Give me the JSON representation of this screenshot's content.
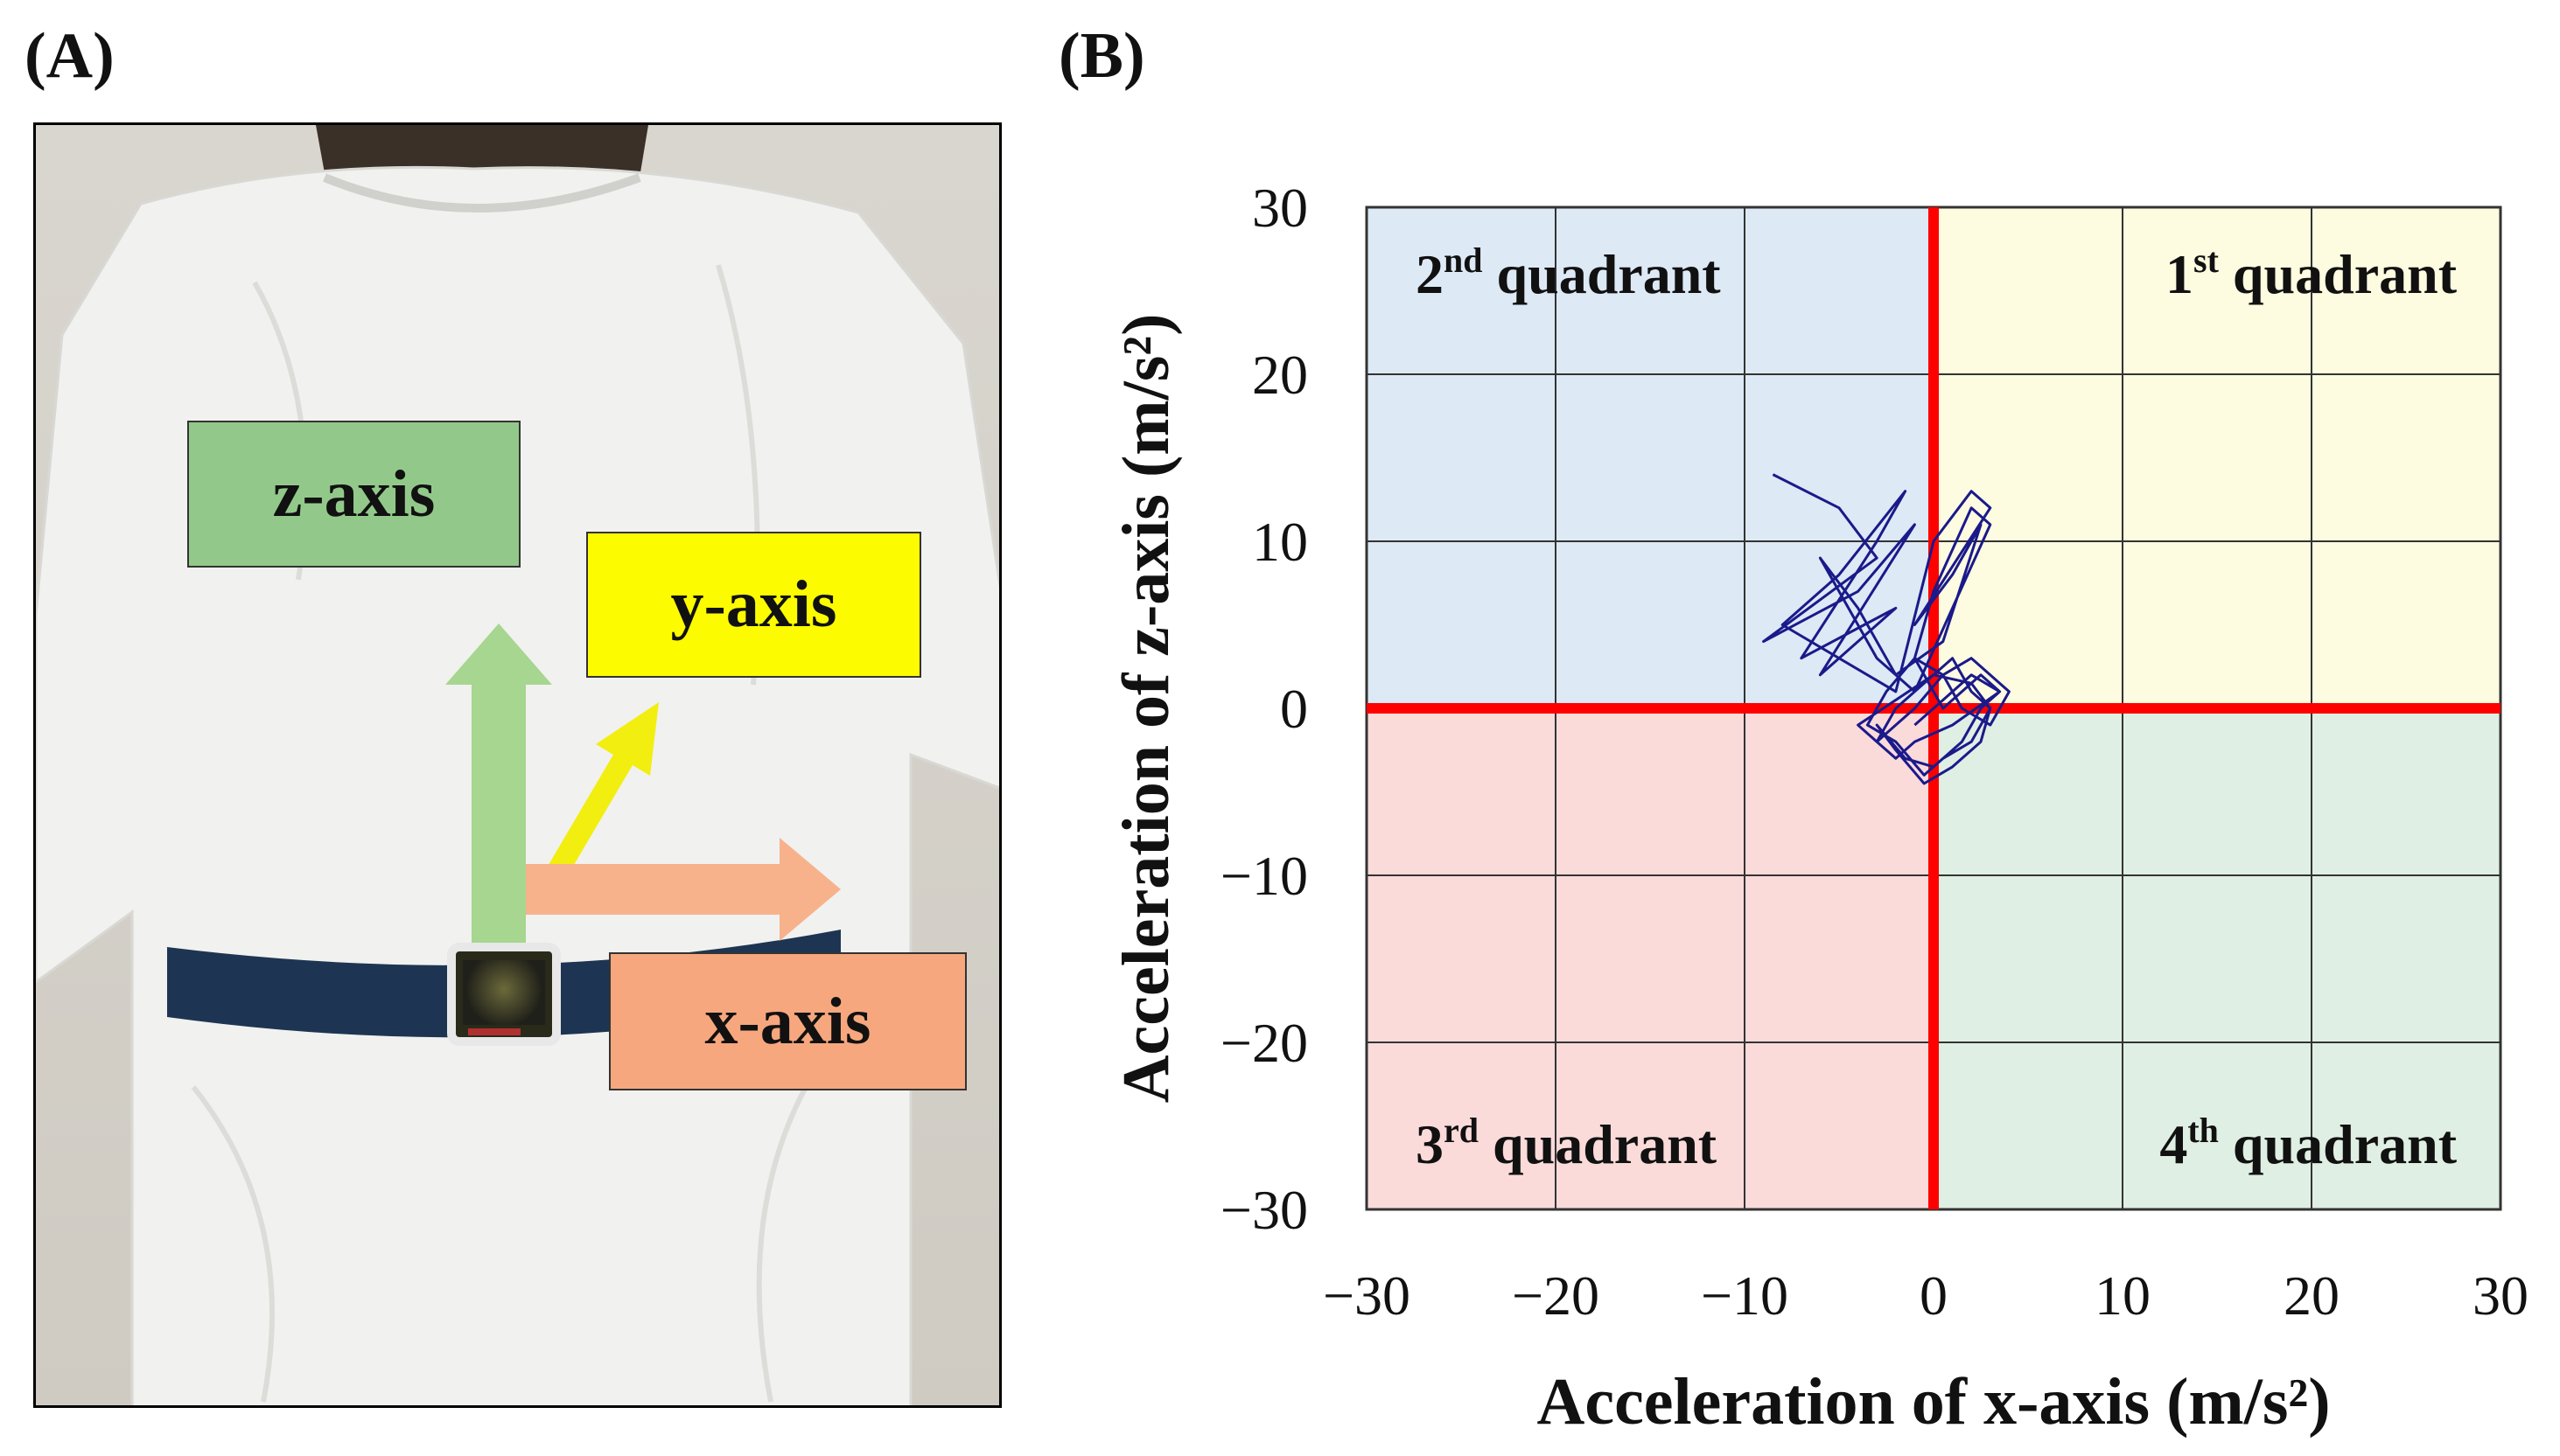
{
  "panels": {
    "a_label": "(A)",
    "b_label": "(B)"
  },
  "photo": {
    "z_axis_label": "z-axis",
    "y_axis_label": "y-axis",
    "x_axis_label": "x-axis",
    "colors": {
      "z": "#92c98a",
      "y": "#fdfb00",
      "x": "#f7a77e",
      "z_arrow": "#a6d68f",
      "y_arrow": "#f2ee10",
      "x_arrow": "#f7b28c"
    }
  },
  "chart_data": {
    "type": "line",
    "xlabel": "Acceleration of x-axis (m/s²)",
    "ylabel": "Acceleration of z-axis (m/s²)",
    "xlim": [
      -30,
      30
    ],
    "ylim": [
      -30,
      30
    ],
    "x_ticks": [
      -30,
      -20,
      -10,
      0,
      10,
      20,
      30
    ],
    "y_ticks": [
      -30,
      -20,
      -10,
      0,
      10,
      20,
      30
    ],
    "x_tick_labels": [
      "−30",
      "−20",
      "−10",
      "0",
      "10",
      "20",
      "30"
    ],
    "y_tick_labels": [
      "−30",
      "−20",
      "−10",
      "0",
      "10",
      "20",
      "30"
    ],
    "grid": true,
    "quadrants": [
      {
        "num": "2",
        "sup": "nd",
        "text": " quadrant",
        "color": "#dde9f5",
        "region": "top-left"
      },
      {
        "num": "1",
        "sup": "st",
        "text": " quadrant",
        "color": "#fdfbe0",
        "region": "top-right"
      },
      {
        "num": "3",
        "sup": "rd",
        "text": " quadrant",
        "color": "#fbdada",
        "region": "bottom-left"
      },
      {
        "num": "4",
        "sup": "th",
        "text": " quadrant",
        "color": "#e0efe3",
        "region": "bottom-right"
      }
    ],
    "axis_line_color": "#ff0000",
    "series_color": "#1a1a8a",
    "trajectory_x": [
      -8.5,
      -5,
      -3,
      -9,
      -4,
      -1,
      -6,
      -2,
      -7,
      -3,
      -1.5,
      -5,
      -8,
      -2,
      0,
      2,
      3,
      -1,
      1,
      2.5,
      0.5,
      -2,
      -4,
      -6,
      -3,
      -1,
      1,
      3,
      2,
      0,
      -1,
      0.5,
      2.5,
      3.5,
      1,
      -1,
      -2,
      -3,
      -2,
      -1,
      0,
      1,
      2,
      3,
      2,
      0.5,
      -0.5,
      -2,
      -3.5,
      -2.5,
      -1,
      0.5,
      1.5,
      3,
      4,
      2,
      0.5,
      -1,
      -3,
      -4,
      -2,
      0,
      2,
      3,
      2.5,
      1,
      -0.5,
      -2,
      -3,
      -1.5,
      0,
      1.5,
      2.5,
      3.5,
      2,
      0.5,
      -1
    ],
    "trajectory_y": [
      14,
      12,
      9,
      4,
      7,
      11,
      2,
      6,
      3,
      10,
      13,
      8,
      5,
      1,
      10,
      13,
      12,
      5,
      8,
      11,
      4,
      2,
      6,
      9,
      3,
      1,
      6,
      11,
      12,
      7,
      3,
      0,
      2,
      1,
      -1,
      -2,
      -3,
      -2,
      0,
      1,
      2,
      3,
      1,
      0,
      -2,
      -3,
      -4,
      -2,
      -1,
      1,
      3,
      2,
      0,
      -1,
      1,
      3,
      2,
      0,
      -2,
      -1,
      0.5,
      2,
      1.5,
      0,
      -2,
      -3.5,
      -4.5,
      -2.5,
      -1,
      -3,
      -3.5,
      -2,
      0,
      1,
      2,
      0.5,
      -1
    ]
  }
}
